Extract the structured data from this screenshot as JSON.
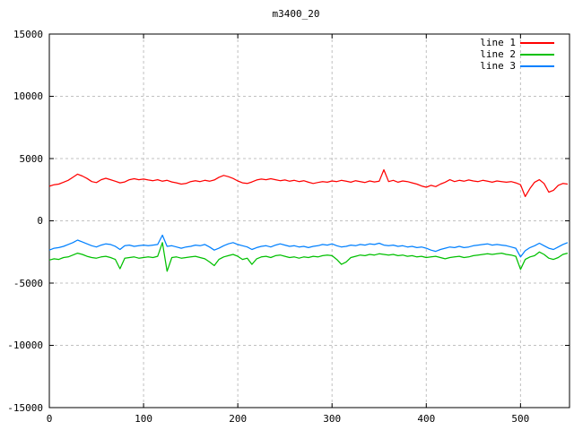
{
  "window": {
    "background": "#ffffff"
  },
  "colors": {
    "line1": "#ff0000",
    "line2": "#00c000",
    "line3": "#0080ff",
    "grid": "#c0c0c0",
    "border": "#000000",
    "text": "#000000"
  },
  "legend": {
    "position": "top-right",
    "entries": [
      {
        "label": "line 1",
        "color": "#ff0000"
      },
      {
        "label": "line 2",
        "color": "#00c000"
      },
      {
        "label": "line 3",
        "color": "#0080ff"
      }
    ]
  },
  "chart_data": {
    "type": "line",
    "title": "m3400_20",
    "xlabel": "",
    "ylabel": "",
    "xlim": [
      0,
      552
    ],
    "ylim": [
      -15000,
      15000
    ],
    "xticks": [
      0,
      100,
      200,
      300,
      400,
      500
    ],
    "yticks": [
      -15000,
      -10000,
      -5000,
      0,
      5000,
      10000,
      15000
    ],
    "grid": true,
    "grid_style": "dashed",
    "x_step": 5,
    "series": [
      {
        "name": "line 1",
        "color": "#ff0000",
        "values": [
          2780,
          2900,
          2950,
          3100,
          3250,
          3500,
          3750,
          3600,
          3400,
          3150,
          3070,
          3300,
          3420,
          3300,
          3180,
          3050,
          3120,
          3300,
          3380,
          3300,
          3350,
          3280,
          3220,
          3300,
          3180,
          3250,
          3120,
          3050,
          2950,
          3000,
          3150,
          3220,
          3150,
          3250,
          3180,
          3280,
          3500,
          3650,
          3550,
          3400,
          3200,
          3050,
          3000,
          3120,
          3280,
          3350,
          3300,
          3380,
          3300,
          3220,
          3280,
          3180,
          3250,
          3150,
          3220,
          3100,
          3000,
          3080,
          3150,
          3100,
          3200,
          3150,
          3250,
          3180,
          3100,
          3220,
          3150,
          3080,
          3200,
          3120,
          3180,
          4100,
          3150,
          3250,
          3100,
          3200,
          3150,
          3050,
          2950,
          2800,
          2700,
          2850,
          2750,
          2950,
          3100,
          3300,
          3150,
          3250,
          3180,
          3280,
          3200,
          3150,
          3250,
          3180,
          3100,
          3200,
          3150,
          3100,
          3150,
          3050,
          2900,
          1950,
          2600,
          3100,
          3300,
          3000,
          2300,
          2450,
          2850,
          3000,
          2950
        ]
      },
      {
        "name": "line 2",
        "color": "#00c000",
        "values": [
          -3150,
          -3050,
          -3100,
          -2950,
          -2900,
          -2750,
          -2600,
          -2700,
          -2850,
          -2950,
          -3000,
          -2900,
          -2850,
          -2950,
          -3100,
          -3850,
          -3000,
          -2950,
          -2900,
          -3000,
          -2950,
          -2900,
          -2950,
          -2850,
          -1750,
          -4050,
          -2950,
          -2900,
          -3000,
          -2950,
          -2900,
          -2850,
          -2950,
          -3050,
          -3300,
          -3600,
          -3100,
          -2900,
          -2800,
          -2700,
          -2850,
          -3100,
          -3000,
          -3500,
          -3050,
          -2900,
          -2850,
          -2950,
          -2800,
          -2750,
          -2850,
          -2950,
          -2900,
          -3000,
          -2900,
          -2950,
          -2850,
          -2900,
          -2800,
          -2750,
          -2800,
          -3100,
          -3500,
          -3300,
          -2950,
          -2850,
          -2750,
          -2800,
          -2700,
          -2750,
          -2650,
          -2700,
          -2750,
          -2700,
          -2800,
          -2750,
          -2850,
          -2800,
          -2900,
          -2850,
          -2950,
          -2900,
          -2850,
          -2950,
          -3050,
          -2950,
          -2900,
          -2850,
          -2950,
          -2900,
          -2800,
          -2750,
          -2700,
          -2650,
          -2700,
          -2650,
          -2600,
          -2700,
          -2750,
          -2850,
          -3900,
          -3100,
          -2900,
          -2800,
          -2500,
          -2700,
          -3000,
          -3100,
          -2950,
          -2700,
          -2600
        ]
      },
      {
        "name": "line 3",
        "color": "#0080ff",
        "values": [
          -2350,
          -2200,
          -2150,
          -2050,
          -1900,
          -1750,
          -1550,
          -1700,
          -1850,
          -2000,
          -2100,
          -1950,
          -1850,
          -1900,
          -2050,
          -2300,
          -2000,
          -1950,
          -2050,
          -2000,
          -1950,
          -2000,
          -1950,
          -1900,
          -1150,
          -2050,
          -2000,
          -2100,
          -2200,
          -2100,
          -2050,
          -1950,
          -2000,
          -1900,
          -2100,
          -2350,
          -2200,
          -2000,
          -1850,
          -1750,
          -1900,
          -2000,
          -2100,
          -2300,
          -2150,
          -2050,
          -2000,
          -2100,
          -1950,
          -1850,
          -1950,
          -2050,
          -2000,
          -2100,
          -2050,
          -2150,
          -2050,
          -2000,
          -1900,
          -1950,
          -1850,
          -2000,
          -2100,
          -2050,
          -1950,
          -2000,
          -1900,
          -1950,
          -1850,
          -1900,
          -1800,
          -1950,
          -2000,
          -1950,
          -2050,
          -2000,
          -2100,
          -2050,
          -2150,
          -2100,
          -2200,
          -2350,
          -2450,
          -2300,
          -2200,
          -2100,
          -2150,
          -2050,
          -2150,
          -2100,
          -2000,
          -1950,
          -1900,
          -1850,
          -1950,
          -1900,
          -1950,
          -2000,
          -2100,
          -2200,
          -2900,
          -2400,
          -2150,
          -2000,
          -1800,
          -2000,
          -2200,
          -2300,
          -2100,
          -1900,
          -1750
        ]
      }
    ]
  }
}
